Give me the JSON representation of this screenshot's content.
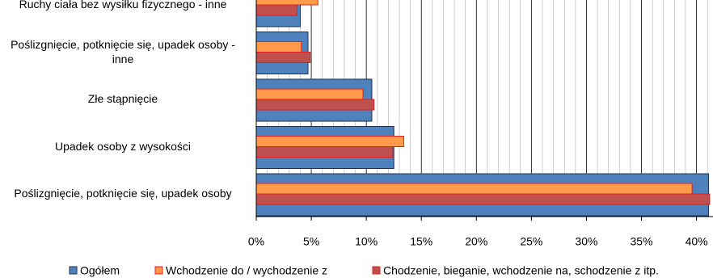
{
  "chart_data": {
    "type": "bar",
    "orientation": "horizontal",
    "categories": [
      "Ruchy ciała bez wysiłku fizycznego - inne",
      "Poślizgnięcie, potknięcie się, upadek osoby - inne",
      "Złe stąpnięcie",
      "Upadek osoby z wysokości",
      "Poślizgnięcie, potknięcie się, upadek osoby"
    ],
    "series": [
      {
        "name": "Ogółem",
        "color": "#4f81bd",
        "values": [
          4.0,
          4.7,
          10.5,
          12.5,
          41.1
        ]
      },
      {
        "name": "Wchodzenie do / wychodzenie z",
        "color": "#ff9a4a",
        "values": [
          5.6,
          4.1,
          9.7,
          13.4,
          39.6
        ]
      },
      {
        "name": "Chodzenie, bieganie, wchodzenie na, schodzenie z itp.",
        "color": "#c0504d",
        "values": [
          3.7,
          4.9,
          10.7,
          12.4,
          41.2
        ]
      }
    ],
    "xlim": [
      0,
      41.5
    ],
    "xticks": [
      {
        "value": 0,
        "label": "0%"
      },
      {
        "value": 5,
        "label": "5%"
      },
      {
        "value": 10,
        "label": "10%"
      },
      {
        "value": 15,
        "label": "15%"
      },
      {
        "value": 20,
        "label": "20%"
      },
      {
        "value": 25,
        "label": "25%"
      },
      {
        "value": 30,
        "label": "30%"
      },
      {
        "value": 35,
        "label": "35%"
      },
      {
        "value": 40,
        "label": "40%"
      }
    ],
    "grid": true,
    "legend": "bottom"
  }
}
